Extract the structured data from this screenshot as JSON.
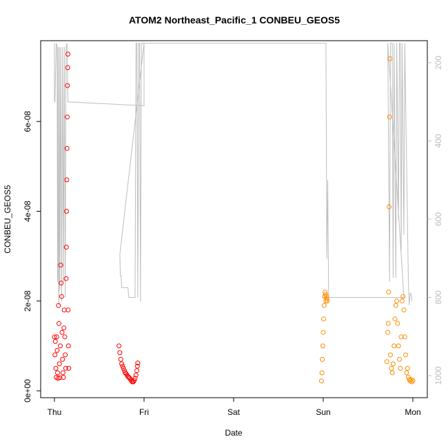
{
  "chart_data": {
    "type": "scatter",
    "title": "ATOM2 Northeast_Pacific_1 CONBEU_GEOS5",
    "xlabel": "Date",
    "ylabel": "CONBEU_GEOS5",
    "x_ticks": [
      "Thu",
      "Fri",
      "Sat",
      "Sun",
      "Mon"
    ],
    "xlim": [
      0,
      4
    ],
    "y_ticks": [
      "0e+00",
      "2e-08",
      "4e-08",
      "6e-08"
    ],
    "y_tick_values": [
      0,
      2e-08,
      4e-08,
      6e-08
    ],
    "ylim": [
      0,
      7.8e-08
    ],
    "y2_ticks": [
      "200",
      "400",
      "600",
      "800",
      "1000"
    ],
    "y2_tick_values": [
      200,
      400,
      600,
      800,
      1000
    ],
    "y2lim": [
      1050,
      160
    ],
    "colors": {
      "red_series": "#ff0000",
      "orange_series": "#ff8c00",
      "pressure_line": "#bdbdbd"
    },
    "series": [
      {
        "color": "#ff0000",
        "points": [
          [
            0.0,
            1.2e-08
          ],
          [
            0.005,
            8e-09
          ],
          [
            0.01,
            1.1e-08
          ],
          [
            0.015,
            5e-09
          ],
          [
            0.02,
            3e-09
          ],
          [
            0.025,
            1.2e-08
          ],
          [
            0.03,
            9e-09
          ],
          [
            0.035,
            4e-09
          ],
          [
            0.04,
            2.8e-09
          ],
          [
            0.045,
            1.9e-08
          ],
          [
            0.05,
            1.5e-08
          ],
          [
            0.055,
            6e-09
          ],
          [
            0.06,
            2.9e-09
          ],
          [
            0.065,
            1e-08
          ],
          [
            0.07,
            2.8e-08
          ],
          [
            0.075,
            2.4e-08
          ],
          [
            0.08,
            2.1e-08
          ],
          [
            0.085,
            1.3e-08
          ],
          [
            0.09,
            7e-09
          ],
          [
            0.095,
            4e-09
          ],
          [
            0.1,
            3e-09
          ],
          [
            0.105,
            1.4e-08
          ],
          [
            0.11,
            1.8e-08
          ],
          [
            0.115,
            1.2e-08
          ],
          [
            0.12,
            8e-09
          ],
          [
            0.125,
            5e-09
          ],
          [
            0.13,
            2.5e-08
          ],
          [
            0.132,
            3.2e-08
          ],
          [
            0.135,
            4e-08
          ],
          [
            0.138,
            4.7e-08
          ],
          [
            0.14,
            5.4e-08
          ],
          [
            0.142,
            6.1e-08
          ],
          [
            0.145,
            6.8e-08
          ],
          [
            0.148,
            7.2e-08
          ],
          [
            0.15,
            7.5e-08
          ],
          [
            0.152,
            1.8e-08
          ],
          [
            0.155,
            1e-08
          ],
          [
            0.16,
            5e-09
          ],
          [
            0.72,
            1e-08
          ],
          [
            0.73,
            8.5e-09
          ],
          [
            0.74,
            7e-09
          ],
          [
            0.75,
            6e-09
          ],
          [
            0.76,
            5.5e-09
          ],
          [
            0.77,
            5e-09
          ],
          [
            0.78,
            4.5e-09
          ],
          [
            0.79,
            4e-09
          ],
          [
            0.8,
            3.8e-09
          ],
          [
            0.81,
            3.5e-09
          ],
          [
            0.82,
            3.2e-09
          ],
          [
            0.83,
            3e-09
          ],
          [
            0.84,
            2.8e-09
          ],
          [
            0.85,
            2.5e-09
          ],
          [
            0.86,
            2.2e-09
          ],
          [
            0.87,
            2e-09
          ],
          [
            0.88,
            2e-09
          ],
          [
            0.89,
            2.3e-09
          ],
          [
            0.9,
            2.8e-09
          ],
          [
            0.91,
            3.5e-09
          ],
          [
            0.92,
            4.5e-09
          ],
          [
            0.925,
            5.5e-09
          ],
          [
            0.93,
            6.2e-09
          ]
        ]
      },
      {
        "color": "#ff8c00",
        "points": [
          [
            2.98,
            2.2e-09
          ],
          [
            2.985,
            4e-09
          ],
          [
            2.99,
            7e-09
          ],
          [
            2.995,
            1e-08
          ],
          [
            3.0,
            1.3e-08
          ],
          [
            3.005,
            1.6e-08
          ],
          [
            3.01,
            1.9e-08
          ],
          [
            3.015,
            2.1e-08
          ],
          [
            3.02,
            2.2e-08
          ],
          [
            3.025,
            2.15e-08
          ],
          [
            3.03,
            2e-08
          ],
          [
            3.035,
            2.1e-08
          ],
          [
            3.04,
            2.05e-08
          ],
          [
            3.045,
            2e-08
          ],
          [
            3.71,
            6.5e-09
          ],
          [
            3.72,
            1.3e-08
          ],
          [
            3.725,
            1.5e-08
          ],
          [
            3.73,
            2.2e-08
          ],
          [
            3.735,
            4.1e-08
          ],
          [
            3.74,
            6.1e-08
          ],
          [
            3.745,
            7.4e-08
          ],
          [
            3.75,
            8e-09
          ],
          [
            3.76,
            5e-09
          ],
          [
            3.77,
            4e-09
          ],
          [
            3.78,
            6e-09
          ],
          [
            3.79,
            1e-08
          ],
          [
            3.8,
            1.6e-08
          ],
          [
            3.81,
            1.9e-08
          ],
          [
            3.82,
            2e-08
          ],
          [
            3.83,
            1.5e-08
          ],
          [
            3.84,
            1e-08
          ],
          [
            3.85,
            7e-09
          ],
          [
            3.86,
            5e-09
          ],
          [
            3.87,
            1.2e-08
          ],
          [
            3.88,
            2e-08
          ],
          [
            3.89,
            2.1e-08
          ],
          [
            3.9,
            1.8e-08
          ],
          [
            3.91,
            1.2e-08
          ],
          [
            3.92,
            8e-09
          ],
          [
            3.93,
            4e-09
          ],
          [
            3.94,
            5e-09
          ],
          [
            3.95,
            3e-09
          ],
          [
            3.96,
            2.5e-09
          ],
          [
            3.97,
            2.2e-09
          ],
          [
            3.98,
            2.5e-09
          ],
          [
            3.99,
            2e-09
          ],
          [
            4.0,
            2.3e-09
          ]
        ]
      }
    ],
    "pressure_line": {
      "color": "#bdbdbd",
      "points": [
        [
          0.0,
          150
        ],
        [
          0.0,
          300
        ],
        [
          0.005,
          300
        ],
        [
          0.02,
          150
        ],
        [
          0.03,
          160
        ],
        [
          0.035,
          760
        ],
        [
          0.04,
          160
        ],
        [
          0.045,
          750
        ],
        [
          0.05,
          820
        ],
        [
          0.055,
          160
        ],
        [
          0.06,
          780
        ],
        [
          0.07,
          160
        ],
        [
          0.08,
          810
        ],
        [
          0.09,
          160
        ],
        [
          0.1,
          760
        ],
        [
          0.11,
          160
        ],
        [
          0.12,
          800
        ],
        [
          0.13,
          160
        ],
        [
          0.14,
          150
        ],
        [
          0.15,
          300
        ],
        [
          1.0,
          310
        ],
        [
          1.0,
          150
        ],
        [
          0.73,
          690
        ],
        [
          0.735,
          745
        ],
        [
          0.745,
          745
        ],
        [
          0.75,
          775
        ],
        [
          0.82,
          775
        ],
        [
          0.83,
          800
        ],
        [
          0.9,
          800
        ],
        [
          0.91,
          150
        ],
        [
          0.92,
          150
        ],
        [
          0.93,
          800
        ],
        [
          0.94,
          150
        ],
        [
          0.95,
          150
        ],
        [
          0.96,
          810
        ],
        [
          0.97,
          150
        ],
        [
          3.03,
          150
        ],
        [
          3.04,
          700
        ],
        [
          3.05,
          500
        ],
        [
          3.06,
          800
        ],
        [
          3.0,
          800
        ],
        [
          3.9,
          800
        ],
        [
          3.72,
          150
        ],
        [
          3.74,
          760
        ],
        [
          3.75,
          150
        ],
        [
          3.77,
          150
        ],
        [
          3.78,
          750
        ],
        [
          3.79,
          150
        ],
        [
          3.81,
          750
        ],
        [
          3.82,
          150
        ],
        [
          3.84,
          600
        ],
        [
          3.85,
          150
        ],
        [
          3.86,
          150
        ],
        [
          3.87,
          680
        ],
        [
          3.88,
          150
        ],
        [
          3.9,
          640
        ],
        [
          3.91,
          150
        ],
        [
          3.95,
          760
        ],
        [
          3.96,
          820
        ],
        [
          3.97,
          790
        ],
        [
          3.98,
          790
        ],
        [
          3.99,
          810
        ]
      ]
    }
  }
}
